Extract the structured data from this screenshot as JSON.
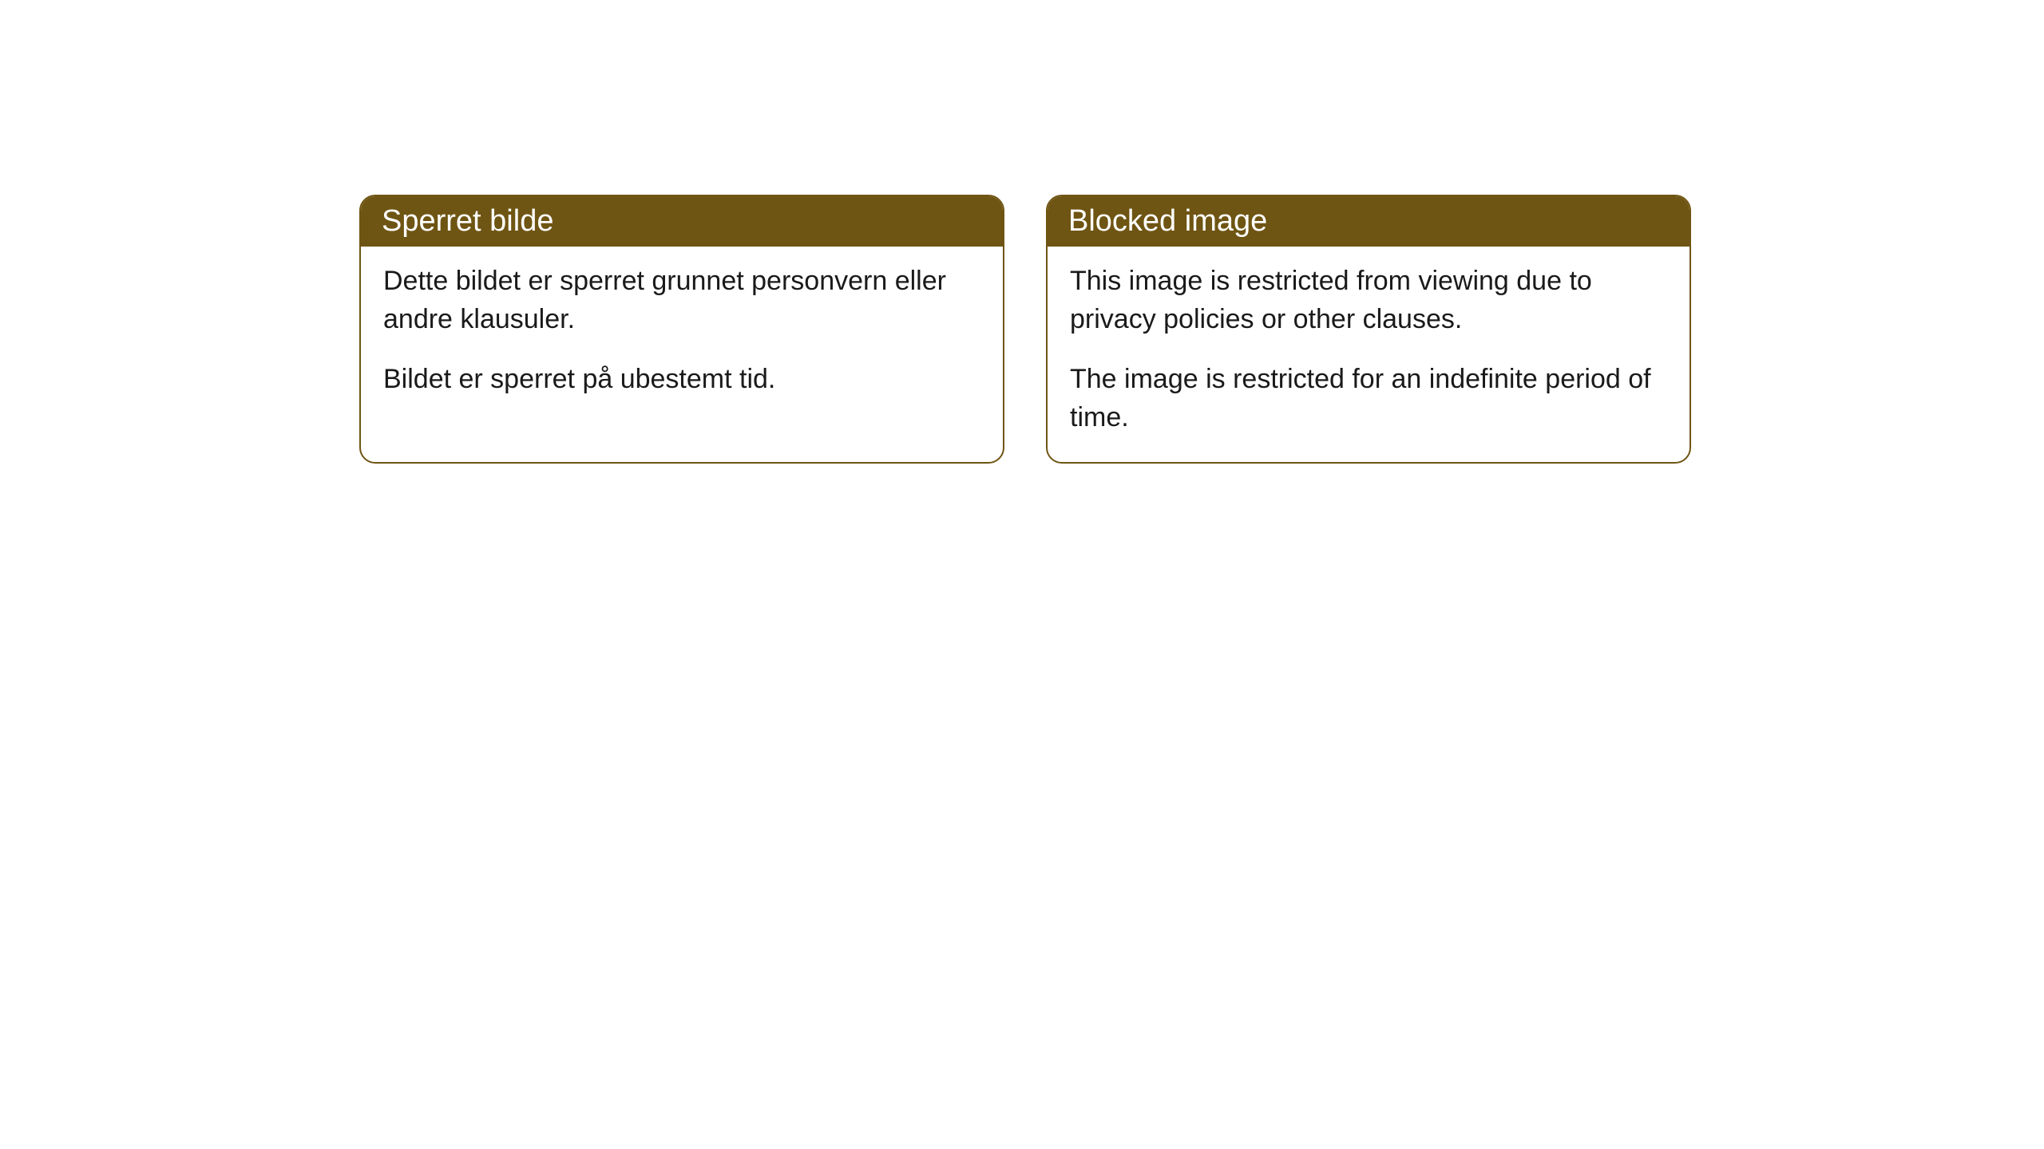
{
  "cards": [
    {
      "title": "Sperret bilde",
      "paragraph1": "Dette bildet er sperret grunnet personvern eller andre klausuler.",
      "paragraph2": "Bildet er sperret på ubestemt tid."
    },
    {
      "title": "Blocked image",
      "paragraph1": "This image is restricted from viewing due to privacy policies or other clauses.",
      "paragraph2": "The image is restricted for an indefinite period of time."
    }
  ],
  "styling": {
    "header_background": "#6f5513",
    "header_text_color": "#ffffff",
    "border_color": "#6f5513",
    "body_text_color": "#1a1a1a",
    "page_background": "#ffffff",
    "border_radius": 20,
    "title_fontsize": 38,
    "body_fontsize": 34
  }
}
